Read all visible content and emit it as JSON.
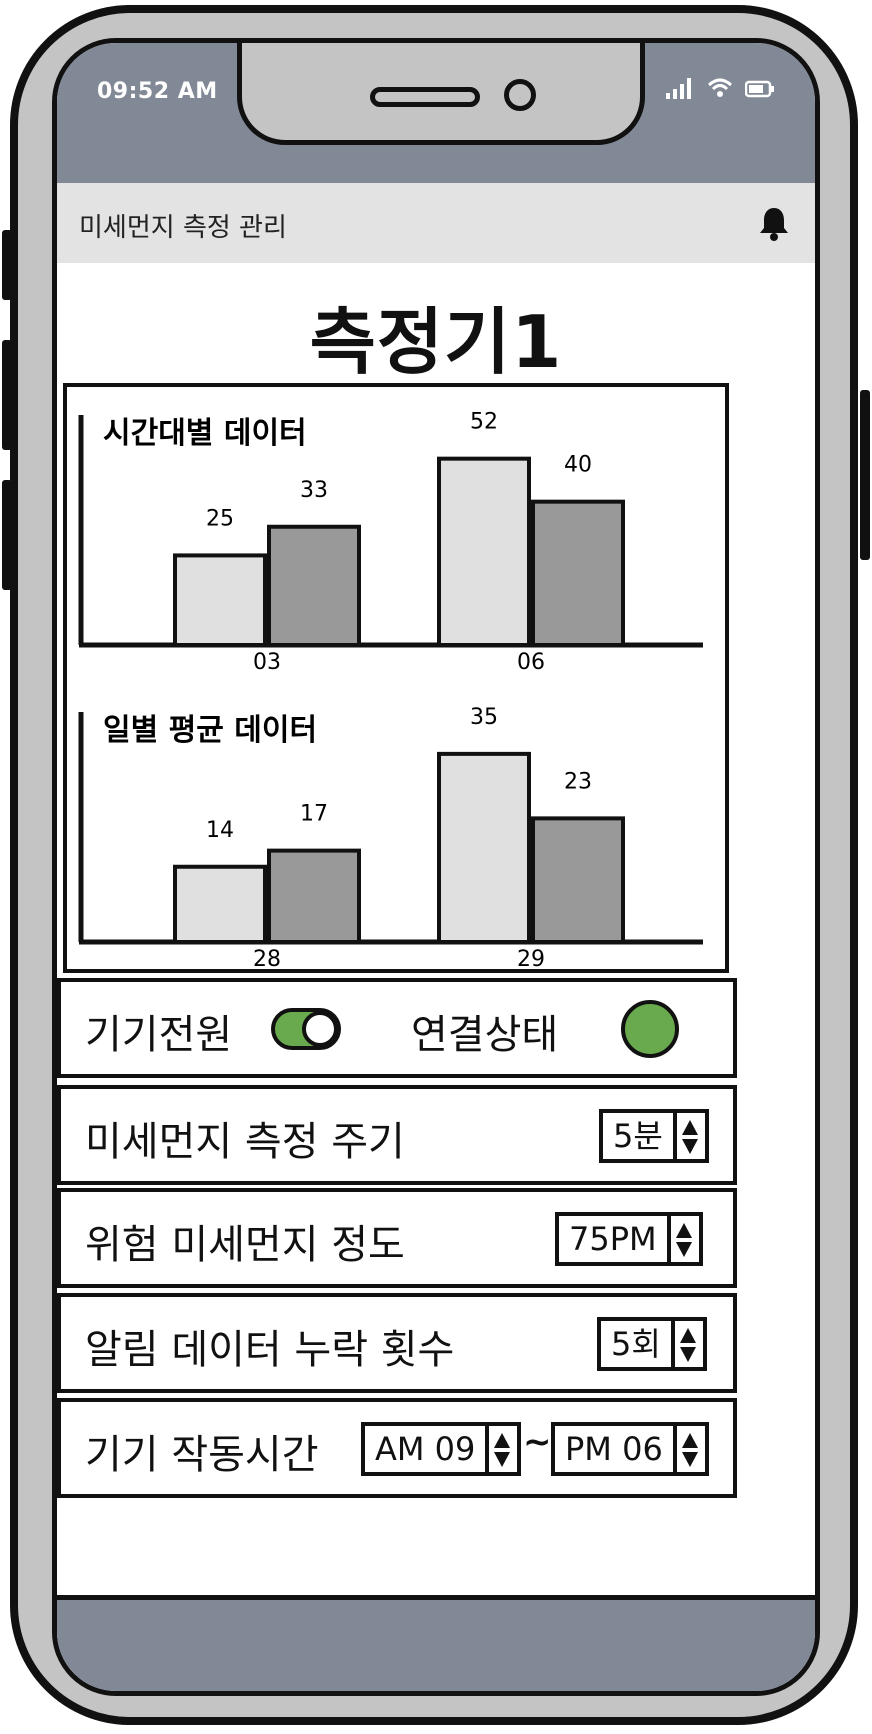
{
  "status_bar": {
    "time": "09:52 AM"
  },
  "app_bar": {
    "title": "미세먼지 측정 관리"
  },
  "device": {
    "title": "측정기1"
  },
  "chart_data": [
    {
      "type": "bar",
      "title": "시간대별 데이터",
      "categories": [
        "03",
        "06"
      ],
      "series": [
        {
          "values": [
            25,
            52
          ]
        },
        {
          "values": [
            33,
            40
          ]
        }
      ],
      "ylim": [
        0,
        60
      ],
      "colors": [
        "#e0e0e0",
        "#999999"
      ]
    },
    {
      "type": "bar",
      "title": "일별 평균 데이터",
      "categories": [
        "28",
        "29"
      ],
      "series": [
        {
          "values": [
            14,
            35
          ]
        },
        {
          "values": [
            17,
            23
          ]
        }
      ],
      "ylim": [
        0,
        40
      ],
      "colors": [
        "#e0e0e0",
        "#999999"
      ]
    }
  ],
  "controls": {
    "power_label": "기기전원",
    "power_on": true,
    "connection_label": "연결상태",
    "connection_color": "#6aaa4e",
    "interval_label": "미세먼지 측정 주기",
    "interval_value": "5분",
    "danger_label": "위험 미세먼지 정도",
    "danger_value": "75PM",
    "missing_label": "알림 데이터 누락 횟수",
    "missing_value": "5회",
    "hours_label": "기기 작동시간",
    "hours_start": "AM 09",
    "hours_separator": "~",
    "hours_end": "PM 06"
  },
  "icons": {
    "bell": "bell-icon",
    "signal": "signal-icon",
    "wifi": "wifi-icon",
    "battery": "battery-icon",
    "stepper": "up-down-arrows-icon"
  }
}
